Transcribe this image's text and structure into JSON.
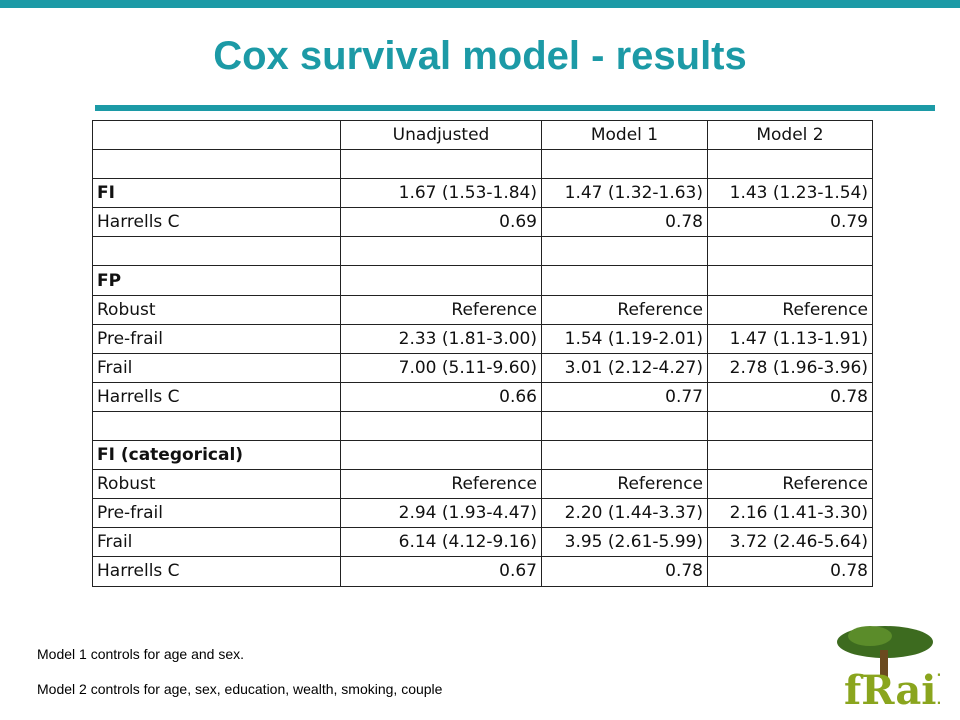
{
  "title": "Cox survival model - results",
  "table": {
    "columns": [
      "Unadjusted",
      "Model 1",
      "Model 2"
    ],
    "sections": [
      {
        "title": "FI",
        "values": [
          "1.67 (1.53-1.84)",
          "1.47 (1.32-1.63)",
          "1.43 (1.23-1.54)"
        ],
        "rows": [
          {
            "label": "Harrells C",
            "values": [
              "0.69",
              "0.78",
              "0.79"
            ]
          }
        ]
      },
      {
        "title": "FP",
        "rows": [
          {
            "label": "Robust",
            "values": [
              "Reference",
              "Reference",
              "Reference"
            ]
          },
          {
            "label": "Pre-frail",
            "values": [
              "2.33 (1.81-3.00)",
              "1.54 (1.19-2.01)",
              "1.47 (1.13-1.91)"
            ]
          },
          {
            "label": "Frail",
            "values": [
              "7.00 (5.11-9.60)",
              "3.01 (2.12-4.27)",
              "2.78 (1.96-3.96)"
            ]
          },
          {
            "label": "Harrells C",
            "values": [
              "0.66",
              "0.77",
              "0.78"
            ]
          }
        ]
      },
      {
        "title": "FI (categorical)",
        "rows": [
          {
            "label": "Robust",
            "values": [
              "Reference",
              "Reference",
              "Reference"
            ]
          },
          {
            "label": "Pre-frail",
            "values": [
              "2.94 (1.93-4.47)",
              "2.20 (1.44-3.37)",
              "2.16 (1.41-3.30)"
            ]
          },
          {
            "label": "Frail",
            "values": [
              "6.14 (4.12-9.16)",
              "3.95 (2.61-5.99)",
              "3.72 (2.46-5.64)"
            ]
          },
          {
            "label": "Harrells C",
            "values": [
              "0.67",
              "0.78",
              "0.78"
            ]
          }
        ]
      }
    ]
  },
  "notes": [
    "Model 1 controls for age and sex.",
    "Model 2 controls for age, sex, education, wealth, smoking, couple"
  ],
  "logo": "fRail"
}
